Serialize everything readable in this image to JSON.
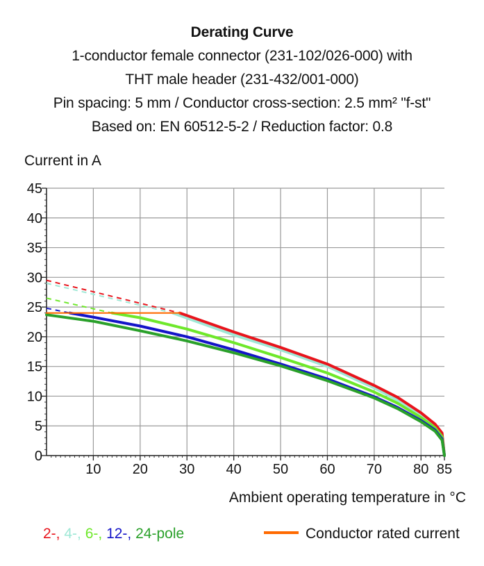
{
  "header": {
    "title": "Derating Curve",
    "line1": "1-conductor female connector (231-102/026-000) with",
    "line2": "THT male header (231-432/001-000)",
    "line3": "Pin spacing: 5 mm / Conductor cross-section: 2.5 mm² \"f-st\"",
    "line4": "Based on: EN 60512-5-2 / Reduction factor: 0.8"
  },
  "legend": {
    "items": [
      {
        "text": "2-,",
        "color": "#e8141c"
      },
      {
        "text": "4-,",
        "color": "#9fe8d6"
      },
      {
        "text": "6-,",
        "color": "#6ee82a"
      },
      {
        "text": "12-,",
        "color": "#1414c8"
      },
      {
        "text": "24-pole",
        "color": "#2aa02a"
      }
    ],
    "rated_label": "Conductor rated current",
    "rated_color": "#ff6a00"
  },
  "chart_data": {
    "type": "line",
    "ylabel": "Current in A",
    "xlabel": "Ambient operating temperature in °C",
    "xlim": [
      0,
      85
    ],
    "ylim": [
      0,
      45
    ],
    "x_ticks": [
      10,
      20,
      30,
      40,
      50,
      60,
      70,
      80,
      85
    ],
    "x_tick_labels": [
      "10",
      "20",
      "30",
      "40",
      "50",
      "60",
      "70",
      "80",
      "85"
    ],
    "y_ticks": [
      0,
      5,
      10,
      15,
      20,
      25,
      30,
      35,
      40,
      45
    ],
    "y_tick_labels": [
      "0",
      "5",
      "10",
      "15",
      "20",
      "25",
      "30",
      "35",
      "40",
      "45"
    ],
    "grid": true,
    "series": [
      {
        "name": "2-",
        "color": "#e8141c",
        "dashed": {
          "x": [
            0,
            28.5
          ],
          "y": [
            29.5,
            24.0
          ]
        },
        "values": {
          "x": [
            28.5,
            40,
            50,
            60,
            70,
            75,
            80,
            83,
            84.5,
            85
          ],
          "y": [
            24.0,
            20.8,
            18.2,
            15.4,
            11.8,
            9.8,
            7.2,
            5.3,
            3.8,
            0
          ]
        }
      },
      {
        "name": "4-",
        "color": "#9fe8d6",
        "dashed": {
          "x": [
            0,
            27
          ],
          "y": [
            29.0,
            24.0
          ]
        },
        "values": {
          "x": [
            27,
            40,
            50,
            60,
            70,
            75,
            80,
            83,
            84.5,
            85
          ],
          "y": [
            24.0,
            20.3,
            17.8,
            15.0,
            11.4,
            9.3,
            6.8,
            5.0,
            3.5,
            0
          ]
        }
      },
      {
        "name": "6-",
        "color": "#6ee82a",
        "dashed": {
          "x": [
            0,
            14
          ],
          "y": [
            26.5,
            24.0
          ]
        },
        "values": {
          "x": [
            14,
            20,
            30,
            40,
            50,
            60,
            70,
            75,
            80,
            83,
            84.5,
            85
          ],
          "y": [
            24.0,
            23.2,
            21.3,
            19.0,
            16.5,
            13.9,
            10.7,
            8.8,
            6.4,
            4.7,
            3.2,
            0
          ]
        }
      },
      {
        "name": "12-",
        "color": "#1414c8",
        "dashed": {
          "x": [
            0,
            5
          ],
          "y": [
            24.8,
            24.0
          ]
        },
        "values": {
          "x": [
            5,
            10,
            20,
            30,
            40,
            50,
            60,
            70,
            75,
            80,
            83,
            84.5,
            85
          ],
          "y": [
            24.0,
            23.3,
            21.8,
            20.0,
            17.8,
            15.4,
            12.9,
            9.9,
            8.1,
            5.9,
            4.3,
            2.8,
            0
          ]
        }
      },
      {
        "name": "24-pole",
        "color": "#2aa02a",
        "values": {
          "x": [
            0,
            10,
            20,
            30,
            40,
            50,
            60,
            70,
            75,
            80,
            83,
            84.5,
            85
          ],
          "y": [
            23.7,
            22.6,
            21.0,
            19.3,
            17.3,
            15.1,
            12.6,
            9.7,
            7.9,
            5.7,
            4.1,
            2.6,
            0
          ]
        }
      },
      {
        "name": "Conductor rated current",
        "color": "#ff6a00",
        "values": {
          "x": [
            0,
            28.5
          ],
          "y": [
            24.0,
            24.0
          ]
        }
      }
    ]
  }
}
